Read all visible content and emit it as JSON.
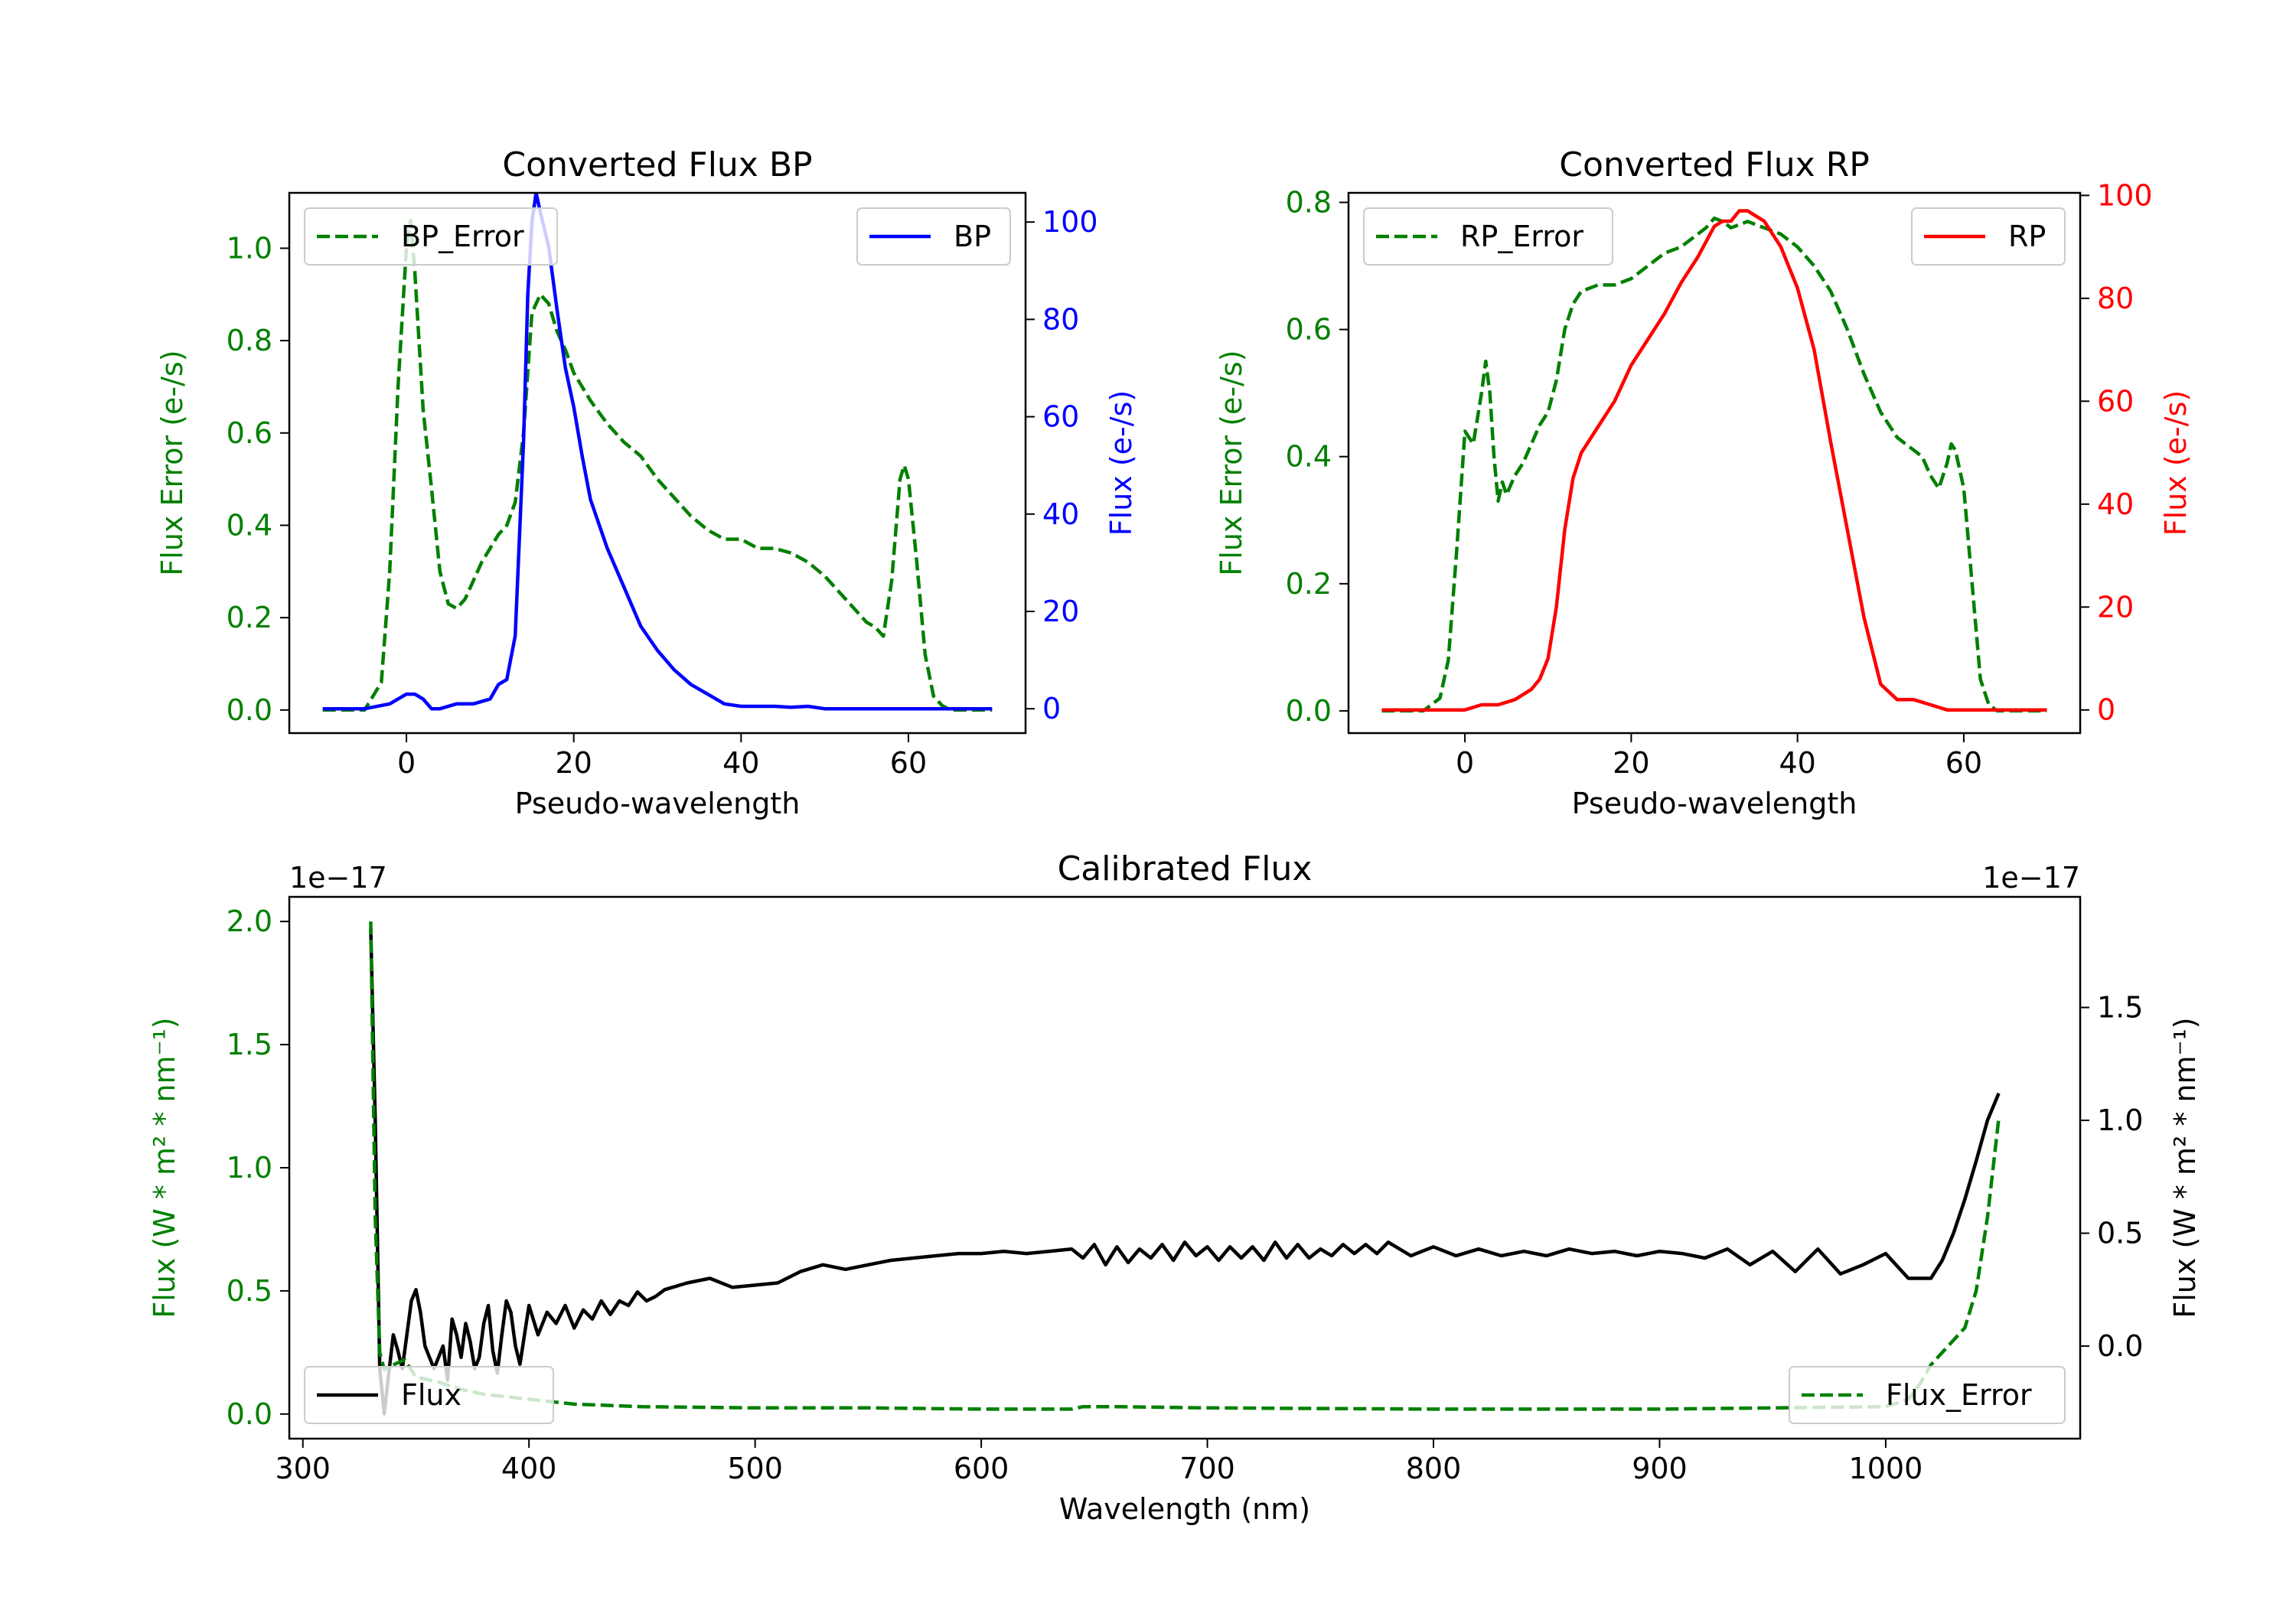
{
  "colors": {
    "green": "#008000",
    "blue": "#0000ff",
    "red": "#ff0000",
    "black": "#000000"
  },
  "chart_data": [
    {
      "id": "bp",
      "type": "line",
      "title": "Converted Flux BP",
      "xlabel": "Pseudo-wavelength",
      "ylabel_left": "Flux Error (e-/s)",
      "ylabel_right": "Flux (e-/s)",
      "xlim": [
        -14,
        74
      ],
      "ylim_left": [
        -0.05,
        1.12
      ],
      "ylim_right": [
        -5,
        106
      ],
      "xticks": [
        0,
        20,
        40,
        60
      ],
      "yticks_left": [
        0.0,
        0.2,
        0.4,
        0.6,
        0.8,
        1.0
      ],
      "yticks_left_labels": [
        "0.0",
        "0.2",
        "0.4",
        "0.6",
        "0.8",
        "1.0"
      ],
      "yticks_right": [
        0,
        20,
        40,
        60,
        80,
        100
      ],
      "yticks_right_labels": [
        "0",
        "20",
        "40",
        "60",
        "80",
        "100"
      ],
      "left_color": "#008000",
      "right_color": "#0000ff",
      "legend_left": {
        "label": "BP_Error",
        "placement": "upper left"
      },
      "legend_right": {
        "label": "BP",
        "placement": "upper right"
      },
      "series": [
        {
          "name": "BP_Error",
          "axis": "left",
          "style": "dashed",
          "color": "#008000",
          "x": [
            -10,
            -5,
            -3,
            -2,
            -1,
            0,
            0.5,
            1,
            2,
            3,
            4,
            5,
            6,
            7,
            8,
            9,
            10,
            11,
            12,
            13,
            14,
            15,
            16,
            17,
            18,
            19,
            20,
            22,
            24,
            26,
            28,
            30,
            32,
            34,
            36,
            38,
            40,
            42,
            44,
            46,
            48,
            50,
            52,
            54,
            55,
            56,
            57,
            58,
            59,
            59.5,
            60,
            61,
            62,
            63,
            64,
            65,
            70
          ],
          "y": [
            0.0,
            0.0,
            0.06,
            0.3,
            0.7,
            1.0,
            1.06,
            0.95,
            0.65,
            0.48,
            0.3,
            0.23,
            0.22,
            0.24,
            0.28,
            0.32,
            0.35,
            0.38,
            0.4,
            0.45,
            0.6,
            0.86,
            0.9,
            0.88,
            0.82,
            0.78,
            0.73,
            0.67,
            0.62,
            0.58,
            0.55,
            0.5,
            0.46,
            0.42,
            0.39,
            0.37,
            0.37,
            0.35,
            0.35,
            0.34,
            0.32,
            0.29,
            0.25,
            0.21,
            0.19,
            0.18,
            0.16,
            0.28,
            0.5,
            0.53,
            0.5,
            0.32,
            0.12,
            0.03,
            0.01,
            0.0,
            0.0
          ]
        },
        {
          "name": "BP",
          "axis": "right",
          "style": "solid",
          "color": "#0000ff",
          "x": [
            -10,
            -5,
            -2,
            0,
            1,
            2,
            3,
            4,
            6,
            8,
            10,
            11,
            12,
            13,
            14,
            14.5,
            15,
            15.5,
            16,
            17,
            18,
            19,
            20,
            21,
            22,
            24,
            26,
            28,
            30,
            32,
            34,
            36,
            38,
            40,
            42,
            44,
            46,
            48,
            50,
            55,
            60,
            65,
            70
          ],
          "y": [
            0,
            0,
            1,
            3,
            3,
            2,
            0,
            0,
            1,
            1,
            2,
            5,
            6,
            15,
            55,
            85,
            100,
            106,
            102,
            95,
            82,
            70,
            62,
            52,
            43,
            33,
            25,
            17,
            12,
            8,
            5,
            3,
            1,
            0.5,
            0.5,
            0.5,
            0.3,
            0.5,
            0,
            0,
            0,
            0,
            0
          ]
        }
      ]
    },
    {
      "id": "rp",
      "type": "line",
      "title": "Converted Flux RP",
      "xlabel": "Pseudo-wavelength",
      "ylabel_left": "Flux Error (e-/s)",
      "ylabel_right": "Flux (e-/s)",
      "xlim": [
        -14,
        74
      ],
      "ylim_left": [
        -0.035,
        0.815
      ],
      "ylim_right": [
        -4.5,
        100.5
      ],
      "xticks": [
        0,
        20,
        40,
        60
      ],
      "yticks_left": [
        0.0,
        0.2,
        0.4,
        0.6,
        0.8
      ],
      "yticks_left_labels": [
        "0.0",
        "0.2",
        "0.4",
        "0.6",
        "0.8"
      ],
      "yticks_right": [
        0,
        20,
        40,
        60,
        80,
        100
      ],
      "yticks_right_labels": [
        "0",
        "20",
        "40",
        "60",
        "80",
        "100"
      ],
      "left_color": "#008000",
      "right_color": "#ff0000",
      "legend_left": {
        "label": "RP_Error",
        "placement": "upper left"
      },
      "legend_right": {
        "label": "RP",
        "placement": "upper right"
      },
      "series": [
        {
          "name": "RP_Error",
          "axis": "left",
          "style": "dashed",
          "color": "#008000",
          "x": [
            -10,
            -5,
            -4,
            -3,
            -2,
            -1,
            0,
            1,
            2,
            2.5,
            3,
            3.5,
            4,
            4.5,
            5,
            6,
            7,
            8,
            9,
            10,
            11,
            12,
            13,
            14,
            16,
            18,
            20,
            22,
            24,
            26,
            28,
            29,
            30,
            31,
            32,
            33,
            34,
            35,
            36,
            38,
            40,
            42,
            44,
            46,
            48,
            50,
            52,
            54,
            55,
            56,
            57,
            58,
            58.5,
            59,
            60,
            61,
            62,
            63,
            64,
            70
          ],
          "y": [
            0.0,
            0.0,
            0.01,
            0.02,
            0.08,
            0.25,
            0.44,
            0.42,
            0.5,
            0.55,
            0.5,
            0.4,
            0.33,
            0.36,
            0.34,
            0.37,
            0.39,
            0.42,
            0.45,
            0.47,
            0.52,
            0.6,
            0.64,
            0.66,
            0.67,
            0.67,
            0.68,
            0.7,
            0.72,
            0.73,
            0.75,
            0.76,
            0.775,
            0.77,
            0.76,
            0.765,
            0.77,
            0.765,
            0.76,
            0.75,
            0.73,
            0.7,
            0.66,
            0.6,
            0.53,
            0.47,
            0.43,
            0.41,
            0.4,
            0.37,
            0.35,
            0.39,
            0.42,
            0.41,
            0.35,
            0.2,
            0.05,
            0.01,
            0.0,
            0.0
          ]
        },
        {
          "name": "RP",
          "axis": "right",
          "style": "solid",
          "color": "#ff0000",
          "x": [
            -10,
            -5,
            0,
            2,
            4,
            6,
            8,
            9,
            10,
            11,
            12,
            13,
            14,
            16,
            18,
            20,
            22,
            24,
            26,
            28,
            29,
            30,
            31,
            32,
            33,
            34,
            35,
            36,
            38,
            40,
            42,
            44,
            46,
            48,
            50,
            52,
            54,
            56,
            58,
            60,
            62,
            70
          ],
          "y": [
            0,
            0,
            0,
            1,
            1,
            2,
            4,
            6,
            10,
            20,
            35,
            45,
            50,
            55,
            60,
            67,
            72,
            77,
            83,
            88,
            91,
            94,
            95,
            95,
            97,
            97,
            96,
            95,
            90,
            82,
            70,
            52,
            35,
            18,
            5,
            2,
            2,
            1,
            0,
            0,
            0,
            0
          ]
        }
      ]
    },
    {
      "id": "calibrated",
      "type": "line",
      "title": "Calibrated Flux",
      "xlabel": "Wavelength (nm)",
      "ylabel_left": "Flux (W * m² * nm⁻¹)",
      "ylabel_right": "Flux (W * m² * nm⁻¹)",
      "offset_left": "1e−17",
      "offset_right": "1e−17",
      "xlim": [
        294,
        1086
      ],
      "ylim_left": [
        -0.1,
        2.1
      ],
      "ylim_right": [
        -0.41,
        1.99
      ],
      "xticks": [
        300,
        400,
        500,
        600,
        700,
        800,
        900,
        1000
      ],
      "yticks_left": [
        0.0,
        0.5,
        1.0,
        1.5,
        2.0
      ],
      "yticks_left_labels": [
        "0.0",
        "0.5",
        "1.0",
        "1.5",
        "2.0"
      ],
      "yticks_right": [
        0.0,
        0.5,
        1.0,
        1.5
      ],
      "yticks_right_labels": [
        "0.0",
        "0.5",
        "1.0",
        "1.5"
      ],
      "left_color": "#008000",
      "right_color": "#000000",
      "legend_left": {
        "label": "Flux",
        "placement": "lower left"
      },
      "legend_right": {
        "label": "Flux_Error",
        "placement": "lower right"
      },
      "series": [
        {
          "name": "Flux",
          "axis": "right",
          "style": "solid",
          "color": "#000000",
          "x": [
            330,
            332,
            334,
            336,
            338,
            340,
            342,
            344,
            346,
            348,
            350,
            352,
            354,
            356,
            358,
            360,
            362,
            364,
            366,
            368,
            370,
            372,
            374,
            376,
            378,
            380,
            382,
            384,
            386,
            388,
            390,
            392,
            394,
            396,
            398,
            400,
            404,
            408,
            412,
            416,
            420,
            424,
            428,
            432,
            436,
            440,
            444,
            448,
            452,
            456,
            460,
            470,
            480,
            490,
            500,
            510,
            520,
            530,
            540,
            550,
            560,
            570,
            580,
            590,
            600,
            610,
            620,
            630,
            640,
            645,
            650,
            655,
            660,
            665,
            670,
            675,
            680,
            685,
            690,
            695,
            700,
            705,
            710,
            715,
            720,
            725,
            730,
            735,
            740,
            745,
            750,
            755,
            760,
            765,
            770,
            775,
            780,
            790,
            800,
            810,
            820,
            830,
            840,
            850,
            860,
            870,
            880,
            890,
            900,
            910,
            920,
            930,
            940,
            950,
            960,
            970,
            980,
            990,
            1000,
            1010,
            1020,
            1025,
            1030,
            1035,
            1040,
            1045,
            1050
          ],
          "y": [
            1.85,
            1.0,
            -0.1,
            -0.3,
            -0.12,
            0.05,
            -0.02,
            -0.1,
            0.05,
            0.2,
            0.25,
            0.15,
            0.0,
            -0.05,
            -0.1,
            -0.05,
            0.0,
            -0.15,
            0.12,
            0.05,
            -0.05,
            0.1,
            0.02,
            -0.1,
            -0.05,
            0.1,
            0.18,
            -0.02,
            -0.12,
            0.05,
            0.2,
            0.15,
            0.0,
            -0.08,
            0.05,
            0.18,
            0.05,
            0.15,
            0.1,
            0.18,
            0.08,
            0.16,
            0.12,
            0.2,
            0.14,
            0.2,
            0.18,
            0.24,
            0.2,
            0.22,
            0.25,
            0.28,
            0.3,
            0.26,
            0.27,
            0.28,
            0.33,
            0.36,
            0.34,
            0.36,
            0.38,
            0.39,
            0.4,
            0.41,
            0.41,
            0.42,
            0.41,
            0.42,
            0.43,
            0.39,
            0.45,
            0.36,
            0.44,
            0.37,
            0.43,
            0.39,
            0.45,
            0.38,
            0.46,
            0.4,
            0.44,
            0.38,
            0.44,
            0.39,
            0.44,
            0.38,
            0.46,
            0.39,
            0.45,
            0.39,
            0.43,
            0.4,
            0.45,
            0.41,
            0.45,
            0.41,
            0.46,
            0.4,
            0.44,
            0.4,
            0.43,
            0.4,
            0.42,
            0.4,
            0.43,
            0.41,
            0.42,
            0.4,
            0.42,
            0.41,
            0.39,
            0.43,
            0.36,
            0.42,
            0.33,
            0.43,
            0.32,
            0.36,
            0.41,
            0.3,
            0.3,
            0.38,
            0.5,
            0.65,
            0.82,
            1.0,
            1.12
          ]
        },
        {
          "name": "Flux_Error",
          "axis": "left",
          "style": "dashed",
          "color": "#008000",
          "x": [
            330,
            332,
            334,
            336,
            340,
            345,
            350,
            360,
            370,
            380,
            390,
            400,
            420,
            450,
            500,
            550,
            600,
            630,
            640,
            645,
            660,
            700,
            800,
            900,
            950,
            1000,
            1010,
            1015,
            1020,
            1025,
            1030,
            1035,
            1040,
            1045,
            1050
          ],
          "y": [
            2.0,
            0.8,
            0.25,
            0.18,
            0.2,
            0.22,
            0.15,
            0.13,
            0.1,
            0.08,
            0.07,
            0.06,
            0.04,
            0.03,
            0.025,
            0.025,
            0.02,
            0.02,
            0.02,
            0.03,
            0.03,
            0.025,
            0.02,
            0.02,
            0.025,
            0.03,
            0.06,
            0.12,
            0.2,
            0.25,
            0.3,
            0.35,
            0.5,
            0.8,
            1.2
          ]
        }
      ]
    }
  ]
}
